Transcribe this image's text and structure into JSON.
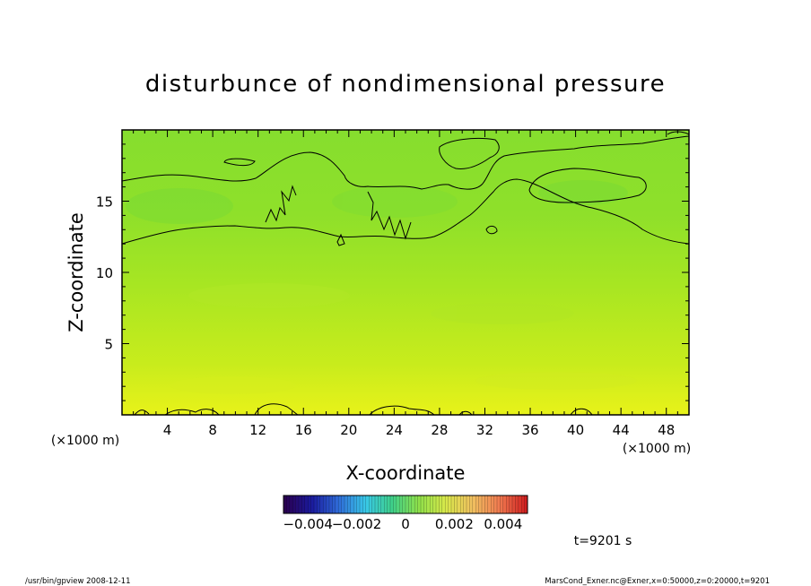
{
  "chart_data": {
    "type": "heatmap",
    "title": "disturbunce of nondimensional pressure",
    "xlabel": "X-coordinate",
    "ylabel": "Z-coordinate",
    "x_unit_left": "(×1000 m)",
    "x_unit_right": "(×1000 m)",
    "xlim": [
      0,
      50
    ],
    "ylim": [
      0,
      20
    ],
    "x_ticks": [
      4,
      8,
      12,
      16,
      20,
      24,
      28,
      32,
      36,
      40,
      44,
      48
    ],
    "x_tick_labels": [
      "4",
      "8",
      "12",
      "16",
      "20",
      "24",
      "28",
      "32",
      "36",
      "40",
      "44",
      "48"
    ],
    "y_ticks": [
      5,
      10,
      15
    ],
    "y_tick_labels": [
      "5",
      "10",
      "15"
    ],
    "colorbar": {
      "range": [
        -0.005,
        0.005
      ],
      "tick_values": [
        -0.004,
        -0.002,
        0,
        0.002,
        0.004
      ],
      "tick_labels": [
        "−0.004",
        "−0.002",
        "0",
        "0.002",
        "0.004"
      ],
      "colors": [
        "#2a0050",
        "#1a1a9e",
        "#2f6bd8",
        "#38c8e8",
        "#3fd08a",
        "#8fe04a",
        "#d8e84a",
        "#f0c060",
        "#f07a50",
        "#d02020"
      ]
    },
    "field_color_levels": {
      "low_z_value": 0.0015,
      "mid_z_value": 0.0009,
      "high_z_value": 0.0004
    },
    "contour_level": 0
  },
  "time_label": "t=9201 s",
  "footer_left": "/usr/bin/gpview   2008-12-11",
  "footer_right": "MarsCond_Exner.nc@Exner,x=0:50000,z=0:20000,t=9201"
}
